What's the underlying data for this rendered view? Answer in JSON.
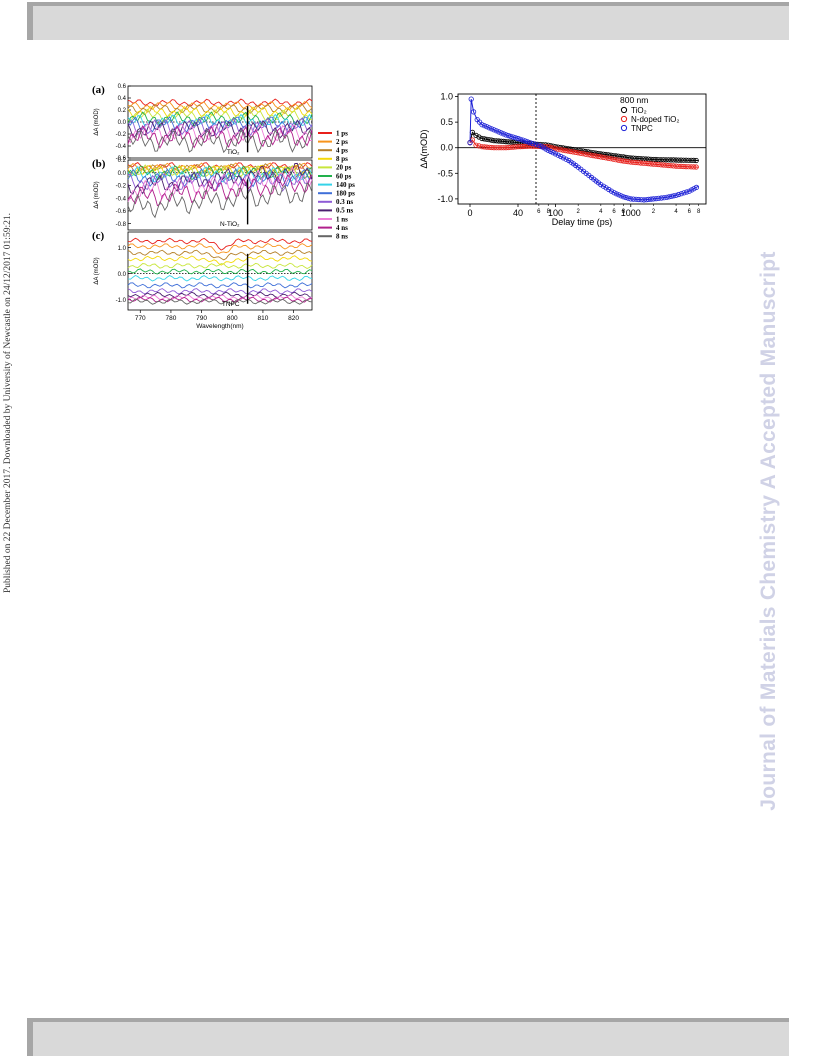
{
  "sidebar_left_text": "Published on 22 December 2017. Downloaded by University of Newcastle on 24/12/2017 01:59:21.",
  "watermark_text": "Journal of Materials Chemistry A Accepted Manuscript",
  "colors": {
    "tio2": "#000000",
    "ntio2": "#e8201b",
    "tnpc": "#1c20d6",
    "watermark": "#d0d2e6"
  },
  "chart_data": [
    {
      "type": "line",
      "panels": [
        {
          "label": "(a)",
          "name": "TiO₂",
          "yticks": [
            "0.6",
            "0.4",
            "0.2",
            "0.0",
            "-0.2",
            "-0.4",
            "-0.6"
          ],
          "ylim": [
            -0.6,
            0.6
          ]
        },
        {
          "label": "(b)",
          "name": "N-TiO₂",
          "yticks": [
            "0.2",
            "0.0",
            "-0.2",
            "-0.4",
            "-0.6",
            "-0.8"
          ],
          "ylim": [
            -0.9,
            0.2
          ]
        },
        {
          "label": "(c)",
          "name": "TNPC",
          "yticks": [
            "1.0",
            "0.0",
            "-1.0"
          ],
          "ylim": [
            -1.4,
            1.6
          ]
        }
      ],
      "ylabel": "ΔA (mOD)",
      "xlabel": "Wavelength(nm)",
      "xticks": [
        "770",
        "780",
        "790",
        "800",
        "810",
        "820"
      ],
      "xlim": [
        766,
        826
      ],
      "marker_wavelength": 805,
      "legend": [
        {
          "name": "1 ps",
          "color": "#e8201b"
        },
        {
          "name": "2 ps",
          "color": "#f7941d"
        },
        {
          "name": "4 ps",
          "color": "#b5812a"
        },
        {
          "name": "8 ps",
          "color": "#f5d90a"
        },
        {
          "name": "20 ps",
          "color": "#c8e63c"
        },
        {
          "name": "60 ps",
          "color": "#22b14c"
        },
        {
          "name": "140 ps",
          "color": "#35d3e8"
        },
        {
          "name": "180 ps",
          "color": "#3f6fd8"
        },
        {
          "name": "0.3 ns",
          "color": "#8e5bd6"
        },
        {
          "name": "0.5 ns",
          "color": "#4b1f6f"
        },
        {
          "name": "1 ns",
          "color": "#ef7fd8"
        },
        {
          "name": "4 ns",
          "color": "#b1208c"
        },
        {
          "name": "8 ns",
          "color": "#666666"
        }
      ],
      "levels": [
        [
          0.32,
          0.27,
          0.22,
          0.17,
          0.11,
          0.05,
          0.0,
          -0.04,
          -0.08,
          -0.12,
          -0.18,
          -0.25,
          -0.32
        ],
        [
          0.1,
          0.08,
          0.06,
          0.04,
          0.02,
          0.0,
          -0.03,
          -0.08,
          -0.14,
          -0.22,
          -0.3,
          -0.4,
          -0.55
        ],
        [
          1.25,
          1.05,
          0.8,
          0.58,
          0.3,
          0.08,
          -0.18,
          -0.45,
          -0.68,
          -0.82,
          -0.92,
          -1.0,
          -1.08
        ]
      ]
    },
    {
      "type": "scatter",
      "annotation": "800 nm",
      "ylabel": "ΔA(mOD)",
      "xlabel": "Delay time (ps)",
      "yticks": [
        "1.0",
        "0.5",
        "0.0",
        "-0.5",
        "-1.0"
      ],
      "ylim": [
        -1.1,
        1.05
      ],
      "x_linear_ticks": [
        "0",
        "40"
      ],
      "x_log_major": [
        "100",
        "1000"
      ],
      "x_log_minor": [
        "6",
        "8",
        "2",
        "4",
        "6",
        "8",
        "2",
        "4",
        "6",
        "8"
      ],
      "x_break": 55,
      "series": [
        {
          "name": "TiO₂",
          "color": "#000000",
          "x": [
            0,
            2,
            5,
            10,
            20,
            30,
            40,
            50,
            80,
            100,
            200,
            400,
            800,
            1000,
            2000,
            4000,
            8000
          ],
          "y": [
            0.1,
            0.3,
            0.24,
            0.18,
            0.14,
            0.12,
            0.1,
            0.08,
            0.05,
            0.02,
            -0.05,
            -0.12,
            -0.18,
            -0.2,
            -0.23,
            -0.24,
            -0.25
          ]
        },
        {
          "name": "N-doped TiO₂",
          "color": "#e8201b",
          "x": [
            0,
            2,
            5,
            10,
            20,
            30,
            40,
            50,
            80,
            100,
            200,
            400,
            800,
            1000,
            2000,
            4000,
            8000
          ],
          "y": [
            0.1,
            0.15,
            0.05,
            0.02,
            0.0,
            0.0,
            0.02,
            0.03,
            0.02,
            -0.02,
            -0.1,
            -0.18,
            -0.26,
            -0.28,
            -0.32,
            -0.36,
            -0.38
          ]
        },
        {
          "name": "TNPC",
          "color": "#1c20d6",
          "x": [
            0,
            1,
            3,
            6,
            10,
            20,
            30,
            40,
            50,
            60,
            80,
            100,
            150,
            200,
            300,
            400,
            600,
            800,
            1000,
            1500,
            2000,
            3000,
            4000,
            6000,
            8000
          ],
          "y": [
            0.1,
            0.95,
            0.7,
            0.55,
            0.45,
            0.35,
            0.25,
            0.18,
            0.1,
            0.05,
            -0.05,
            -0.12,
            -0.25,
            -0.38,
            -0.58,
            -0.72,
            -0.88,
            -0.96,
            -1.0,
            -1.02,
            -1.0,
            -0.97,
            -0.93,
            -0.85,
            -0.75
          ]
        }
      ]
    }
  ]
}
